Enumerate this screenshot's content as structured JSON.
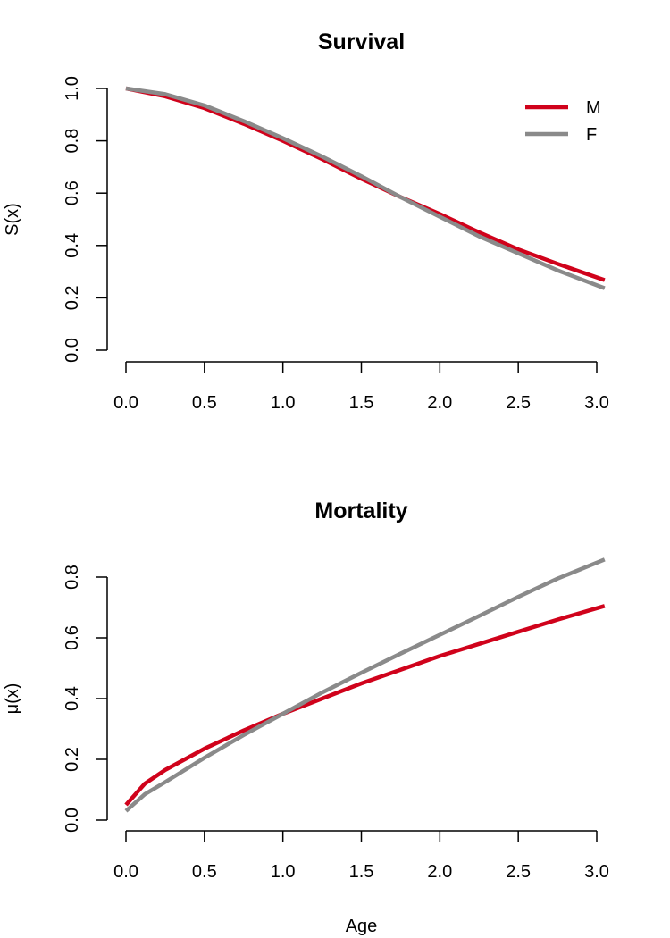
{
  "chart_data": [
    {
      "type": "line",
      "title": "Survival",
      "xlabel": "",
      "ylabel": "S(x)",
      "xlim": [
        0.0,
        3.0
      ],
      "ylim": [
        0.0,
        1.0
      ],
      "xticks": [
        "0.0",
        "0.5",
        "1.0",
        "1.5",
        "2.0",
        "2.5",
        "3.0"
      ],
      "yticks": [
        "0.0",
        "0.2",
        "0.4",
        "0.6",
        "0.8",
        "1.0"
      ],
      "legend": "top-right",
      "grid": false,
      "series": [
        {
          "name": "M",
          "color": "#d0021b",
          "x": [
            0.0,
            0.25,
            0.5,
            0.75,
            1.0,
            1.25,
            1.5,
            1.75,
            2.0,
            2.25,
            2.5,
            2.75,
            3.05
          ],
          "y": [
            1.0,
            0.97,
            0.925,
            0.865,
            0.8,
            0.73,
            0.655,
            0.585,
            0.52,
            0.45,
            0.385,
            0.33,
            0.268
          ]
        },
        {
          "name": "F",
          "color": "#8a8a8a",
          "x": [
            0.0,
            0.25,
            0.5,
            0.75,
            1.0,
            1.25,
            1.5,
            1.75,
            2.0,
            2.25,
            2.5,
            2.75,
            3.05
          ],
          "y": [
            1.0,
            0.978,
            0.935,
            0.875,
            0.81,
            0.74,
            0.665,
            0.585,
            0.51,
            0.435,
            0.37,
            0.305,
            0.237
          ]
        }
      ]
    },
    {
      "type": "line",
      "title": "Mortality",
      "xlabel": "Age",
      "ylabel": "μ(x)",
      "xlim": [
        0.0,
        3.0
      ],
      "ylim": [
        0.0,
        0.8
      ],
      "xticks": [
        "0.0",
        "0.5",
        "1.0",
        "1.5",
        "2.0",
        "2.5",
        "3.0"
      ],
      "yticks": [
        "0.0",
        "0.2",
        "0.4",
        "0.6",
        "0.8"
      ],
      "grid": false,
      "series": [
        {
          "name": "M",
          "color": "#d0021b",
          "x": [
            0.0,
            0.12,
            0.25,
            0.5,
            0.75,
            1.0,
            1.25,
            1.5,
            1.75,
            2.0,
            2.25,
            2.5,
            2.75,
            3.05
          ],
          "y": [
            0.05,
            0.12,
            0.165,
            0.235,
            0.295,
            0.35,
            0.4,
            0.45,
            0.495,
            0.54,
            0.58,
            0.62,
            0.66,
            0.705
          ]
        },
        {
          "name": "F",
          "color": "#8a8a8a",
          "x": [
            0.0,
            0.12,
            0.25,
            0.5,
            0.75,
            1.0,
            1.25,
            1.5,
            1.75,
            2.0,
            2.25,
            2.5,
            2.75,
            3.05
          ],
          "y": [
            0.03,
            0.085,
            0.125,
            0.205,
            0.28,
            0.35,
            0.42,
            0.485,
            0.548,
            0.61,
            0.672,
            0.735,
            0.795,
            0.858
          ]
        }
      ]
    }
  ]
}
